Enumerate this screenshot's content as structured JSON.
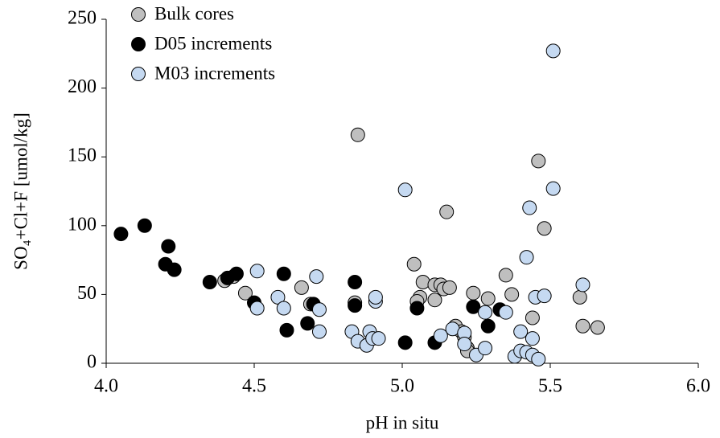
{
  "chart_data": {
    "type": "scatter",
    "x_label": "pH in situ",
    "y_label": "SO₄+Cl+F [umol/kg]",
    "xlim": [
      4.0,
      6.0
    ],
    "ylim": [
      0,
      250
    ],
    "xticks": [
      {
        "value": 4.0,
        "label": "4.0"
      },
      4.5,
      {
        "value": 5.0,
        "label": "5.0"
      },
      5.5,
      {
        "value": 6.0,
        "label": "6.0"
      }
    ],
    "yticks": [
      0,
      50,
      100,
      150,
      200,
      250
    ],
    "grid": false,
    "legend": "upper left",
    "series": [
      {
        "name": "Bulk cores",
        "color": "#bfbfbf",
        "x": [
          4.85,
          5.04,
          5.07,
          5.06,
          5.05,
          5.11,
          5.13,
          5.14,
          5.16,
          5.11,
          5.15,
          5.24,
          5.29,
          5.35,
          5.46,
          5.48,
          5.37,
          5.44,
          5.6,
          5.61,
          5.66,
          4.4,
          4.43,
          4.47,
          4.66,
          4.69,
          4.84,
          5.18,
          5.2,
          5.21,
          5.22,
          5.22
        ],
        "values": [
          166,
          72,
          59,
          48,
          45,
          57,
          57,
          54,
          55,
          46,
          110,
          51,
          47,
          64,
          147,
          98,
          50,
          33,
          48,
          27,
          26,
          60,
          63,
          51,
          55,
          43,
          44,
          27,
          23,
          19,
          11,
          9
        ]
      },
      {
        "name": "D05 increments",
        "color": "#000000",
        "x": [
          4.05,
          4.13,
          4.21,
          4.2,
          4.23,
          4.35,
          4.41,
          4.44,
          4.5,
          4.6,
          4.61,
          4.68,
          4.7,
          4.84,
          4.84,
          5.01,
          5.05,
          5.11,
          5.24,
          5.29,
          5.33
        ],
        "values": [
          94,
          100,
          85,
          72,
          68,
          59,
          62,
          65,
          44,
          65,
          24,
          29,
          43,
          59,
          42,
          15,
          40,
          15,
          41,
          27,
          39
        ]
      },
      {
        "name": "M03 increments",
        "color": "#c5d9f1",
        "x": [
          5.51,
          5.01,
          5.51,
          5.43,
          5.42,
          4.51,
          4.58,
          4.6,
          4.51,
          4.71,
          4.72,
          4.72,
          4.83,
          4.85,
          4.88,
          4.89,
          4.9,
          4.92,
          4.91,
          4.91,
          5.13,
          5.17,
          5.21,
          5.21,
          5.25,
          5.28,
          5.28,
          5.35,
          5.38,
          5.4,
          5.4,
          5.42,
          5.44,
          5.44,
          5.45,
          5.46,
          5.48,
          5.61
        ],
        "values": [
          227,
          126,
          127,
          113,
          77,
          67,
          48,
          40,
          40,
          63,
          39,
          23,
          23,
          16,
          13,
          23,
          18,
          18,
          45,
          48,
          20,
          25,
          22,
          14,
          6,
          11,
          37,
          37,
          5,
          23,
          9,
          8,
          6,
          18,
          48,
          3,
          49,
          57
        ]
      }
    ]
  }
}
